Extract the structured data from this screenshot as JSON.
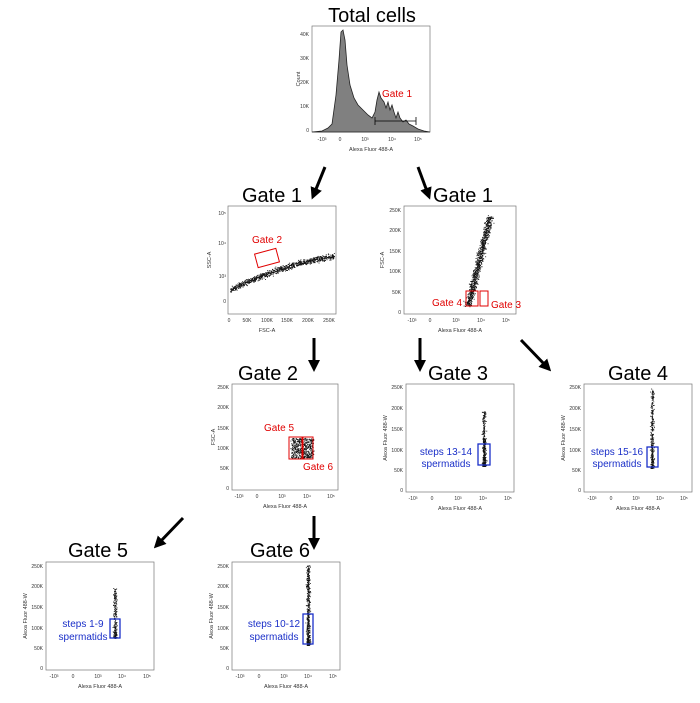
{
  "titles": {
    "total": "Total cells",
    "gate1_left": "Gate 1",
    "gate1_right": "Gate 1",
    "gate2": "Gate 2",
    "gate3": "Gate 3",
    "gate4": "Gate 4",
    "gate5": "Gate 5",
    "gate6": "Gate 6"
  },
  "gate_labels": {
    "g1": "Gate 1",
    "g2": "Gate 2",
    "g3": "Gate 3",
    "g4": "Gate 4",
    "g5": "Gate 5",
    "g6": "Gate 6"
  },
  "populations": {
    "p3_line1": "steps 13-14",
    "p3_line2": "spermatids",
    "p4_line1": "steps 15-16",
    "p4_line2": "spermatids",
    "p5_line1": "steps 1-9",
    "p5_line2": "spermatids",
    "p6_line1": "steps 10-12",
    "p6_line2": "spermatids"
  },
  "axes": {
    "count": "Count",
    "alexa_a": "Alexa Fluor 488-A",
    "alexa_w": "Alexa Fluor 488-W",
    "ssc_a": "SSC-A",
    "fsc_a": "FSC-A"
  },
  "ticks": {
    "count_y": [
      "40K",
      "30K",
      "20K",
      "10K",
      "0"
    ],
    "log_x": [
      "-10³",
      "0",
      "10³",
      "10⁴",
      "10⁵"
    ],
    "log_y": [
      "10⁵",
      "10⁴",
      "10³",
      "0"
    ],
    "lin_x": [
      "0",
      "50K",
      "100K",
      "150K",
      "200K",
      "250K"
    ],
    "lin_y": [
      "250K",
      "200K",
      "150K",
      "100K",
      "50K",
      "0"
    ]
  },
  "colors": {
    "gate": "#e00000",
    "population": "#1a2fc8",
    "histogram_fill": "#808080",
    "dots": "#111111"
  }
}
